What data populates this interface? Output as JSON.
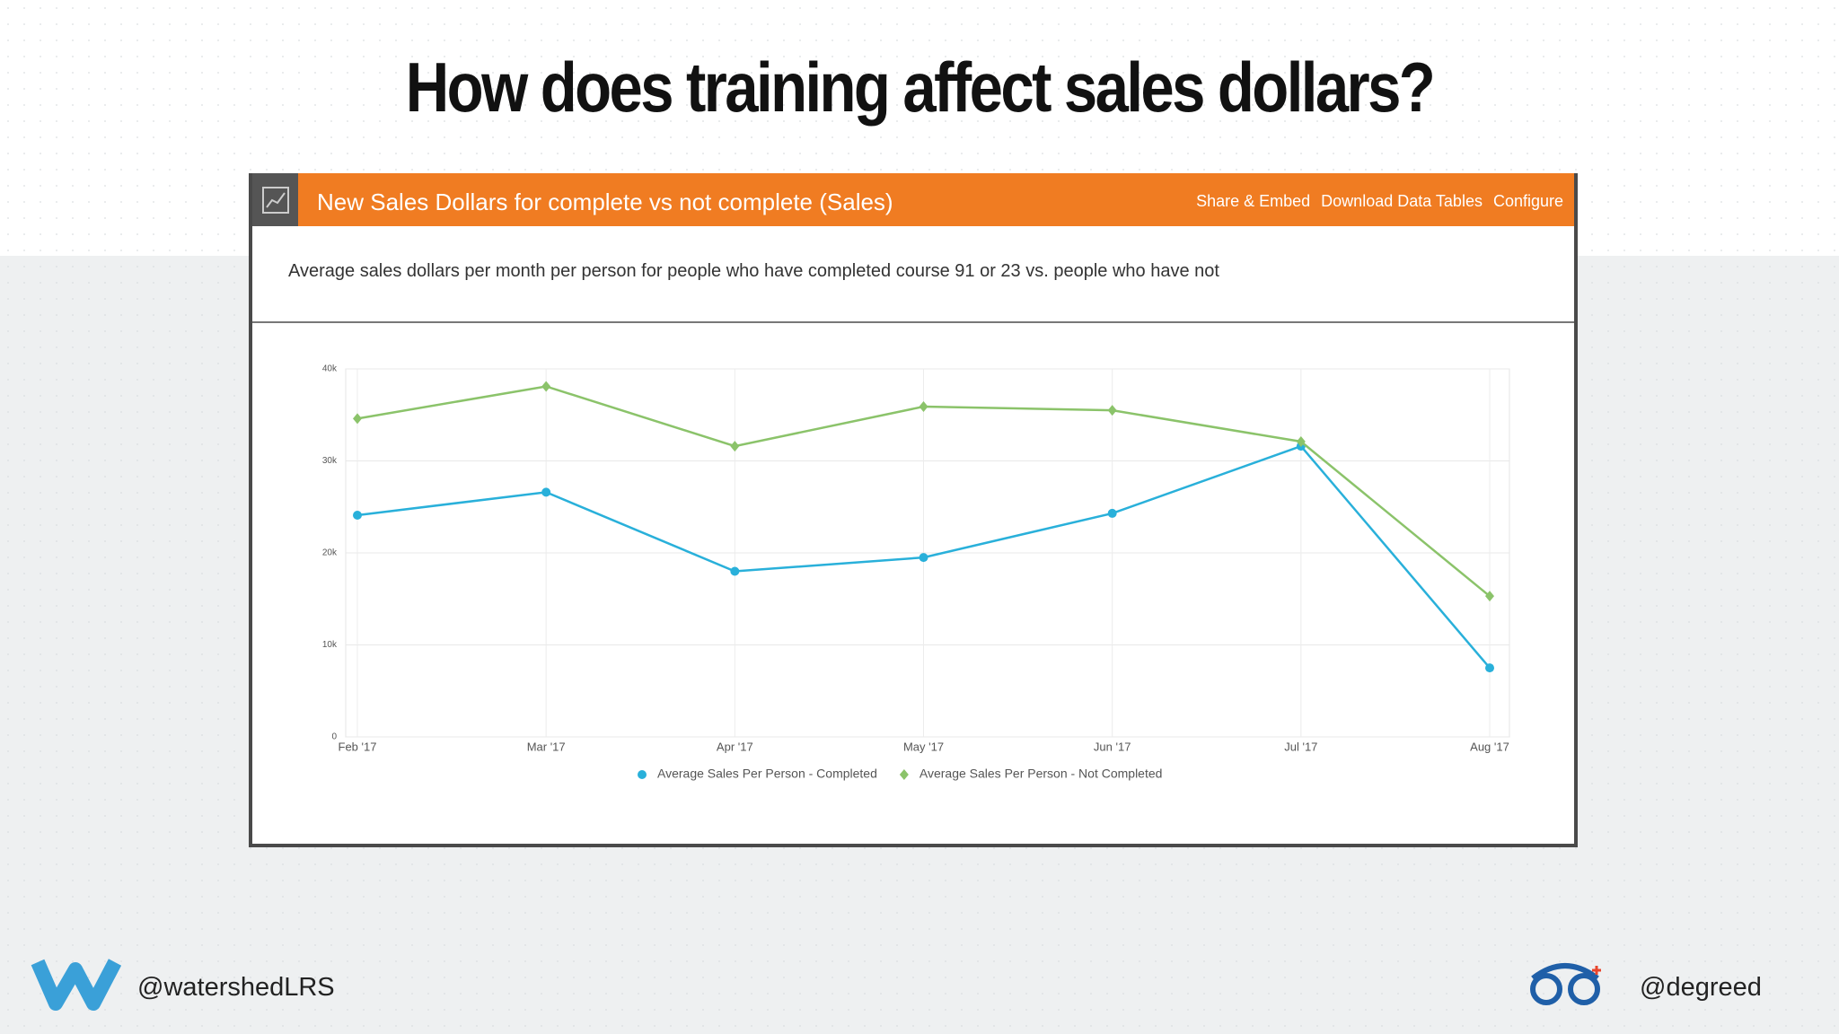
{
  "slide_title": "How does training affect sales dollars?",
  "panel": {
    "links": [
      "Share & Embed",
      "Download Data Tables",
      "Configure"
    ],
    "description": "Average sales dollars per month per person for people who have completed course 91 or 23 vs. people who have not"
  },
  "chart_data": {
    "type": "line",
    "title": "New Sales Dollars for complete vs not complete (Sales)",
    "categories": [
      "Feb '17",
      "Mar '17",
      "Apr '17",
      "May '17",
      "Jun '17",
      "Jul '17",
      "Aug '17"
    ],
    "series": [
      {
        "name": "Average Sales Per Person - Completed",
        "color": "#29b0da",
        "values": [
          24100,
          26600,
          18000,
          19500,
          24300,
          31600,
          7500
        ]
      },
      {
        "name": "Average Sales Per Person - Not Completed",
        "color": "#8bc36a",
        "values": [
          34600,
          38100,
          31600,
          35900,
          35500,
          32100,
          15300
        ]
      }
    ],
    "ylim": [
      0,
      40000
    ],
    "yticks": [
      0,
      {
        "value": 10000,
        "label": "10k"
      },
      {
        "value": 20000,
        "label": "20k"
      },
      {
        "value": 30000,
        "label": "30k"
      },
      {
        "value": 40000,
        "label": "40k"
      }
    ],
    "grid": true
  },
  "footer": {
    "left": "@watershedLRS",
    "right": "@degreed"
  }
}
